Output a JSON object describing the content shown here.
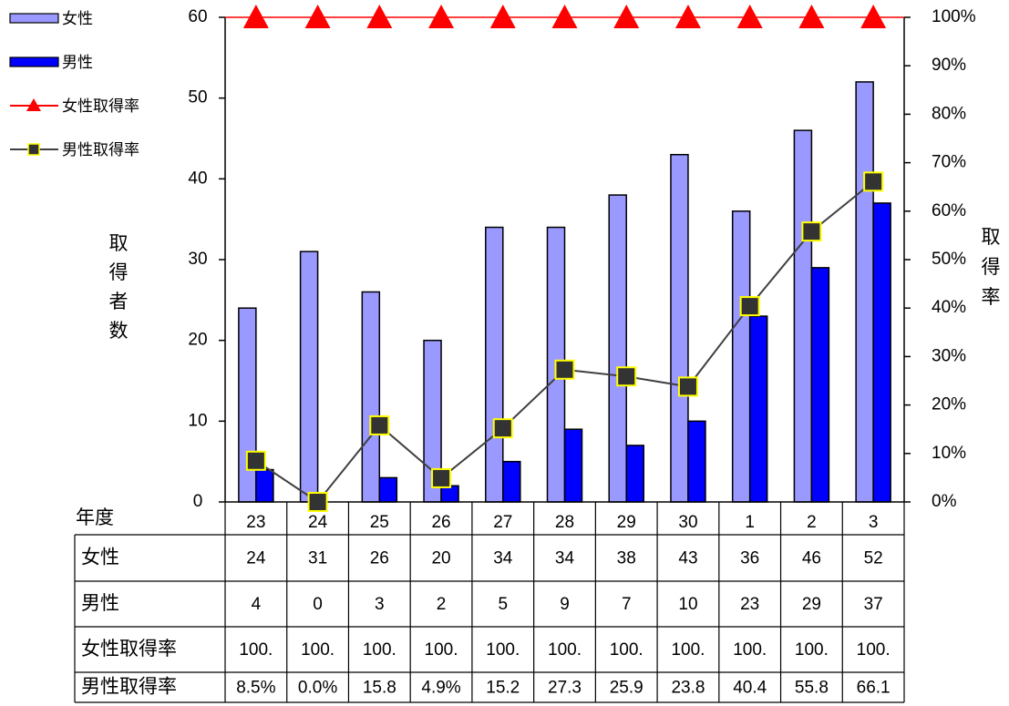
{
  "chart_data": {
    "type": "bar",
    "categories": [
      "23",
      "24",
      "25",
      "26",
      "27",
      "28",
      "29",
      "30",
      "1",
      "2",
      "3"
    ],
    "series": [
      {
        "name": "女性",
        "type": "bar",
        "axis": "left",
        "color": "#9999ff",
        "values": [
          24,
          31,
          26,
          20,
          34,
          34,
          38,
          43,
          36,
          46,
          52
        ]
      },
      {
        "name": "男性",
        "type": "bar",
        "axis": "left",
        "color": "#0000ff",
        "values": [
          4,
          0,
          3,
          2,
          5,
          9,
          7,
          10,
          23,
          29,
          37
        ]
      },
      {
        "name": "女性取得率",
        "type": "line",
        "axis": "right",
        "color": "#ff0000",
        "marker": "triangle",
        "values": [
          100,
          100,
          100,
          100,
          100,
          100,
          100,
          100,
          100,
          100,
          100
        ]
      },
      {
        "name": "男性取得率",
        "type": "line",
        "axis": "right",
        "color": "#333333",
        "marker": "square",
        "marker_edge": "#ffff00",
        "values": [
          8.5,
          0.0,
          15.8,
          4.9,
          15.2,
          27.3,
          25.9,
          23.8,
          40.4,
          55.8,
          66.1
        ]
      }
    ],
    "ylabel": "取得者数",
    "y2label": "取得率",
    "ylim": [
      0,
      60
    ],
    "y_ticks": [
      "0",
      "10",
      "20",
      "30",
      "40",
      "50",
      "60"
    ],
    "y2lim": [
      0,
      100
    ],
    "y2_ticks": [
      "0%",
      "10%",
      "20%",
      "30%",
      "40%",
      "50%",
      "60%",
      "70%",
      "80%",
      "90%",
      "100%"
    ],
    "grid": false,
    "legend_position": "top-left",
    "table": {
      "header_label": "年度",
      "rows": [
        {
          "label": "女性",
          "cells": [
            "24",
            "31",
            "26",
            "20",
            "34",
            "34",
            "38",
            "43",
            "36",
            "46",
            "52"
          ]
        },
        {
          "label": "男性",
          "cells": [
            "4",
            "0",
            "3",
            "2",
            "5",
            "9",
            "7",
            "10",
            "23",
            "29",
            "37"
          ]
        },
        {
          "label": "女性取得率",
          "cells": [
            "100.",
            "100.",
            "100.",
            "100.",
            "100.",
            "100.",
            "100.",
            "100.",
            "100.",
            "100.",
            "100."
          ]
        },
        {
          "label": "男性取得率",
          "cells": [
            "8.5%",
            "0.0%",
            "15.8",
            "4.9%",
            "15.2",
            "27.3",
            "25.9",
            "23.8",
            "40.4",
            "55.8",
            "66.1"
          ]
        }
      ]
    }
  }
}
